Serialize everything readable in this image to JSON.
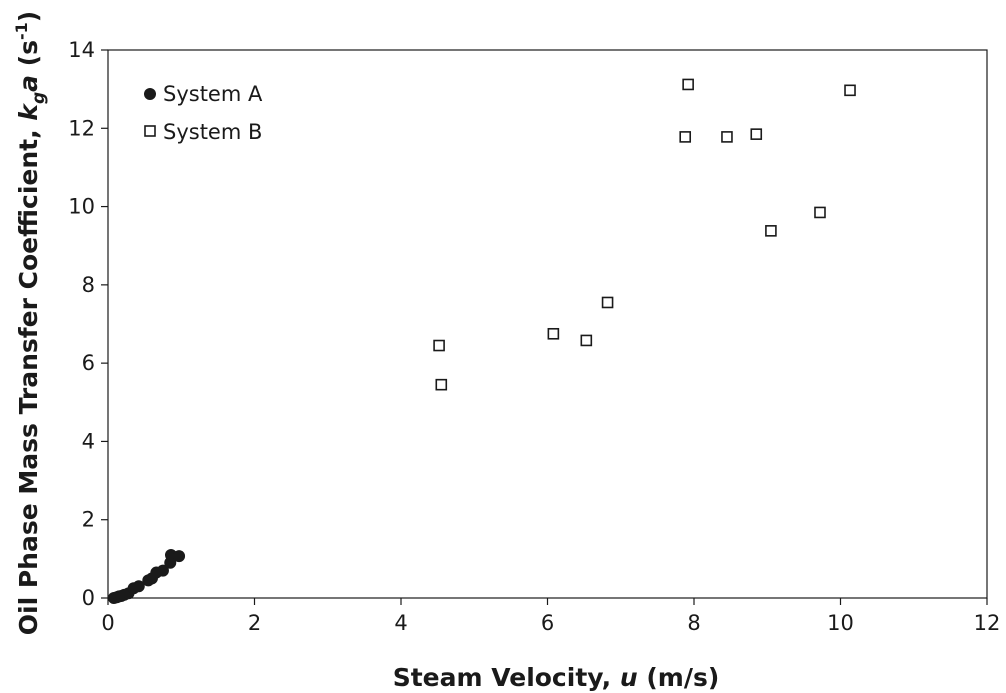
{
  "chart_data": {
    "type": "scatter",
    "title": "",
    "xlabel": {
      "prefix": "Steam Velocity, ",
      "italic": "u",
      "suffix": " (m/s)"
    },
    "ylabel": {
      "prefix": "Oil Phase Mass Transfer Coefficient, ",
      "k": "k",
      "sub": "g",
      "a": "a",
      "unit_open": " (s",
      "unit_sup": "-1",
      "unit_close": ")"
    },
    "xlim": [
      0,
      12
    ],
    "ylim": [
      0,
      14
    ],
    "xticks": [
      0,
      2,
      4,
      6,
      8,
      10,
      12
    ],
    "yticks": [
      0,
      2,
      4,
      6,
      8,
      10,
      12,
      14
    ],
    "grid": false,
    "legend_position": "top-left",
    "series": [
      {
        "name": "System A",
        "marker": "filled-circle",
        "color": "#1a1a1a",
        "points": [
          [
            0.08,
            0.0
          ],
          [
            0.12,
            0.02
          ],
          [
            0.15,
            0.04
          ],
          [
            0.18,
            0.05
          ],
          [
            0.22,
            0.08
          ],
          [
            0.28,
            0.12
          ],
          [
            0.35,
            0.25
          ],
          [
            0.42,
            0.3
          ],
          [
            0.55,
            0.45
          ],
          [
            0.6,
            0.5
          ],
          [
            0.66,
            0.65
          ],
          [
            0.75,
            0.7
          ],
          [
            0.85,
            0.9
          ],
          [
            0.86,
            1.1
          ],
          [
            0.97,
            1.07
          ]
        ]
      },
      {
        "name": "System B",
        "marker": "open-square",
        "color": "#1a1a1a",
        "points": [
          [
            4.52,
            6.45
          ],
          [
            4.55,
            5.45
          ],
          [
            6.08,
            6.75
          ],
          [
            6.53,
            6.58
          ],
          [
            6.82,
            7.55
          ],
          [
            7.88,
            11.78
          ],
          [
            7.92,
            13.12
          ],
          [
            8.45,
            11.78
          ],
          [
            8.85,
            11.85
          ],
          [
            9.05,
            9.38
          ],
          [
            9.72,
            9.85
          ],
          [
            10.13,
            12.97
          ]
        ]
      }
    ]
  }
}
